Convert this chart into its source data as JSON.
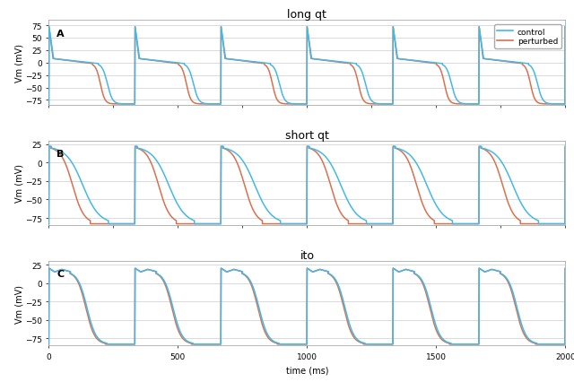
{
  "titles": [
    "long qt",
    "short qt",
    "ito"
  ],
  "panel_labels": [
    "A",
    "B",
    "C"
  ],
  "ylabel": "Vm (mV)",
  "xlabel": "time (ms)",
  "xlim": [
    0,
    2000
  ],
  "ylim_lqt": [
    -85,
    85
  ],
  "ylim_sqt": [
    -85,
    30
  ],
  "ylim_ito": [
    -85,
    30
  ],
  "yticks_lqt": [
    -75,
    -50,
    -25,
    0,
    25,
    50,
    75
  ],
  "yticks_sqt": [
    -75,
    -50,
    -25,
    0,
    25
  ],
  "yticks_ito": [
    -75,
    -50,
    -25,
    0,
    25
  ],
  "control_color": "#45b8e8",
  "perturbed_color": "#d9714e",
  "legend_labels": [
    "control",
    "perturbed"
  ],
  "period": 333.0,
  "t_total": 2000,
  "dt": 0.5,
  "grid_color": "#cccccc",
  "title_fontsize": 9,
  "label_fontsize": 7,
  "tick_fontsize": 6.5,
  "lqt_ctrl_apd": 290,
  "lqt_pert_apd": 255,
  "lqt_v_peak": 72,
  "lqt_v_rest": -83,
  "lqt_plateau": 8,
  "sqt_ctrl_apd": 230,
  "sqt_pert_apd": 160,
  "sqt_v_peak": 22,
  "sqt_v_rest": -83,
  "ito_ctrl_apd": 225,
  "ito_pert_apd": 218,
  "ito_v_peak": 20,
  "ito_v_rest": -83,
  "ito_notch_depth": 5
}
